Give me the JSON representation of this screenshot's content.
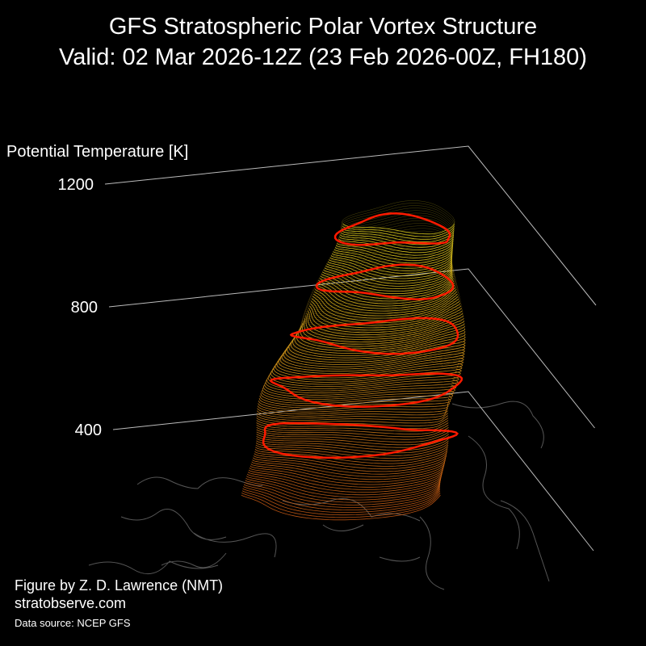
{
  "chart_data": {
    "type": "vortex3d",
    "title": "GFS Stratospheric Polar Vortex Structure",
    "subtitle": "Valid: 02 Mar 2026-12Z  (23 Feb 2026-00Z, FH180)",
    "zlabel": "Potential Temperature [K]",
    "zlim": [
      400,
      1200
    ],
    "zticks": [
      400,
      800,
      1200
    ],
    "highlight_levels": [
      400,
      550,
      700,
      850,
      1000
    ],
    "highlight_color": "#ff1a00",
    "credit": "Figure by Z. D. Lawrence (NMT)",
    "website": "stratobserve.com",
    "source": "Data source: NCEP GFS"
  }
}
